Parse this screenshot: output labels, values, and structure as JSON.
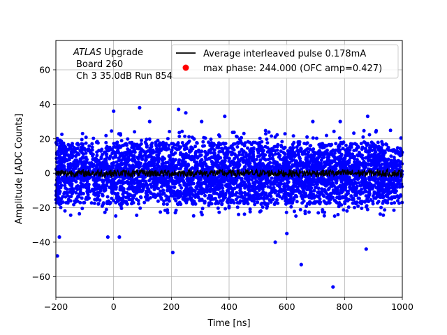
{
  "chart_data": {
    "type": "scatter",
    "xlabel": "Time [ns]",
    "ylabel": "Amplitude [ADC Counts]",
    "xlim": [
      -200,
      1000
    ],
    "ylim": [
      -72,
      77
    ],
    "xticks": [
      -200,
      0,
      200,
      400,
      600,
      800,
      1000
    ],
    "yticks": [
      -60,
      -40,
      -20,
      0,
      20,
      40,
      60
    ],
    "xtick_labels": [
      "−200",
      "0",
      "200",
      "400",
      "600",
      "800",
      "1000"
    ],
    "ytick_labels": [
      "−60",
      "−40",
      "−20",
      "0",
      "20",
      "40",
      "60"
    ],
    "grid": true,
    "legend_position": "top-right",
    "annotation": {
      "line1_italic": "ATLAS",
      "line1_rest": " Upgrade",
      "line2": "Board 260",
      "line3": "Ch 3 35.0dB  Run 854"
    },
    "series": [
      {
        "name": "max phase: 244.000 (OFC amp=0.427)",
        "kind": "scatter",
        "color": "#0000ff",
        "description": "dense noise band, approx mean 0, spread about ±25 ADC counts",
        "band_ylim": [
          -25,
          25
        ],
        "outliers": [
          {
            "x": -195,
            "y": -48
          },
          {
            "x": -188,
            "y": -37
          },
          {
            "x": -20,
            "y": -37
          },
          {
            "x": 20,
            "y": -37
          },
          {
            "x": 90,
            "y": 38
          },
          {
            "x": 125,
            "y": 30
          },
          {
            "x": 205,
            "y": -46
          },
          {
            "x": 225,
            "y": 37
          },
          {
            "x": 250,
            "y": 35
          },
          {
            "x": 305,
            "y": 30
          },
          {
            "x": 385,
            "y": 33
          },
          {
            "x": 560,
            "y": -40
          },
          {
            "x": 600,
            "y": -35
          },
          {
            "x": 650,
            "y": -53
          },
          {
            "x": 690,
            "y": 30
          },
          {
            "x": 760,
            "y": -66
          },
          {
            "x": 785,
            "y": 30
          },
          {
            "x": 875,
            "y": -44
          },
          {
            "x": 880,
            "y": 33
          },
          {
            "x": 0,
            "y": 36
          }
        ]
      },
      {
        "name": "Average interleaved pulse 0.178mA",
        "kind": "line",
        "color": "#000000",
        "description": "average pulse trace near zero, fluctuating about ±3 ADC counts",
        "mean": 0,
        "spread": 3
      }
    ]
  }
}
